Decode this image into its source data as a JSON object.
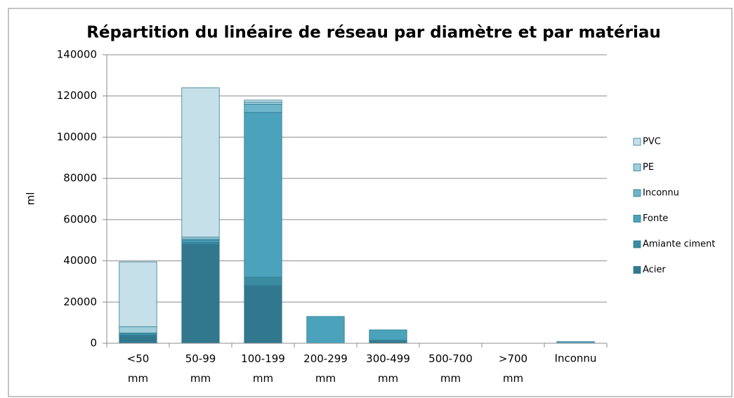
{
  "chart_data": {
    "type": "bar",
    "stacked": true,
    "title": "Répartition du linéaire de réseau par diamètre et par matériau",
    "y_label": "ml",
    "categories": [
      "<50 mm",
      "50-99 mm",
      "100-199 mm",
      "200-299 mm",
      "300-499 mm",
      "500-700 mm",
      ">700 mm",
      "Inconnu"
    ],
    "series": [
      {
        "name": "Acier",
        "color": "#31788f",
        "values": [
          3500,
          48000,
          28000,
          0,
          1000,
          0,
          0,
          0
        ]
      },
      {
        "name": "Amiante ciment",
        "color": "#3b8ba1",
        "values": [
          500,
          1000,
          4000,
          0,
          500,
          0,
          0,
          0
        ]
      },
      {
        "name": "Fonte",
        "color": "#4aa3bb",
        "values": [
          500,
          1000,
          80000,
          13000,
          5000,
          0,
          0,
          800
        ]
      },
      {
        "name": "Inconnu",
        "color": "#6db5c9",
        "values": [
          500,
          500,
          4000,
          0,
          0,
          0,
          0,
          0
        ]
      },
      {
        "name": "PE",
        "color": "#a0cfdc",
        "values": [
          3000,
          1000,
          1000,
          0,
          0,
          0,
          0,
          0
        ]
      },
      {
        "name": "PVC",
        "color": "#c6e0e9",
        "values": [
          31500,
          72500,
          1000,
          0,
          0,
          0,
          0,
          0
        ]
      }
    ],
    "ylim": [
      0,
      140000
    ],
    "yticks": [
      0,
      20000,
      40000,
      60000,
      80000,
      100000,
      120000,
      140000
    ],
    "grid": true,
    "legend": "right"
  }
}
